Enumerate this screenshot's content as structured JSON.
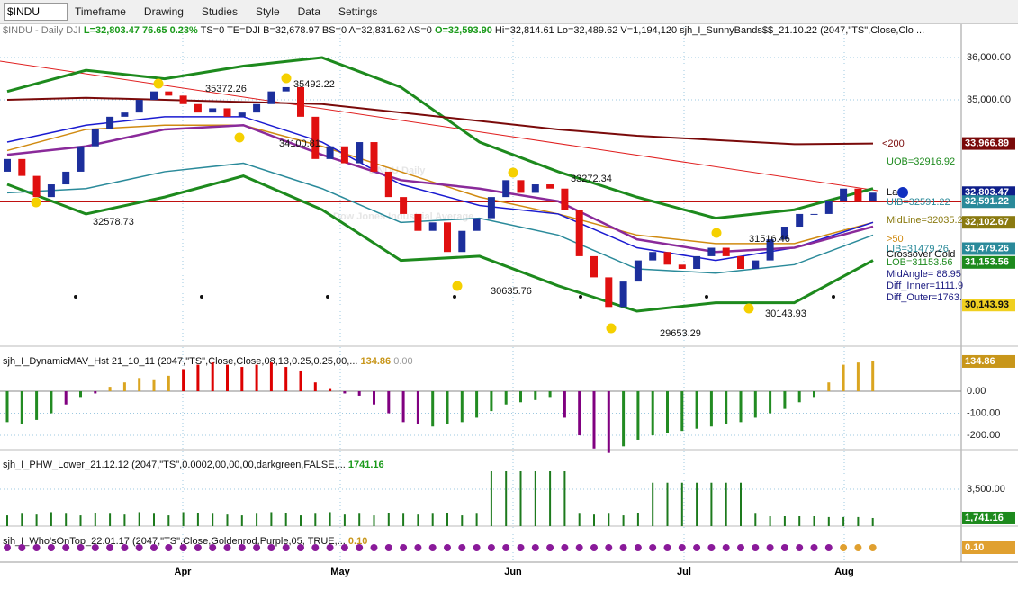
{
  "toolbar": {
    "symbol": "$INDU",
    "buttons": [
      "Timeframe",
      "Drawing",
      "Studies",
      "Style",
      "Data",
      "Settings"
    ]
  },
  "x_axis": {
    "labels": [
      "Apr",
      "May",
      "Jun",
      "Jul",
      "Aug"
    ]
  },
  "chart_data": [
    {
      "type": "candlestick",
      "header": [
        {
          "text": "$INDU - Daily  DJI",
          "color": "#777777"
        },
        {
          "text": " L=32,803.47  76.65  0.23%",
          "color": "#1a9a1a"
        },
        {
          "text": "  TS=0  TE=DJI  B=32,678.97  BS=0  A=32,831.62  AS=0 ",
          "color": "#111111"
        },
        {
          "text": " O=32,593.90",
          "color": "#1a9a1a"
        },
        {
          "text": "  Hi=32,814.61  Lo=32,489.62  V=1,194,120   sjh_I_SunnyBands$$_21.10.22 (2047,\"TS\",Close,Clo ...",
          "color": "#111111"
        }
      ],
      "watermark": [
        "$INDU Daily",
        "Dow Jones Industrial Average"
      ],
      "up_color": "#1c2f9c",
      "down_color": "#e01010",
      "open": [
        33300,
        33600,
        33200,
        32700,
        33000,
        33300,
        33900,
        34300,
        34600,
        34700,
        35000,
        35200,
        35100,
        34900,
        34700,
        34800,
        34600,
        34700,
        34900,
        35200,
        35300,
        34600,
        33600,
        33900,
        33500,
        34000,
        33300,
        32700,
        32300,
        31900,
        32100,
        31400,
        31900,
        32200,
        32700,
        33100,
        32800,
        33000,
        32900,
        32400,
        31300,
        30800,
        30100,
        30700,
        31200,
        31400,
        31100,
        31000,
        31300,
        31500,
        31300,
        31000,
        31200,
        31700,
        32000,
        32300,
        32300,
        32600,
        32900,
        32600
      ],
      "close": [
        33600,
        33200,
        32700,
        33000,
        33300,
        33900,
        34300,
        34600,
        34700,
        35000,
        35200,
        35100,
        34900,
        34700,
        34800,
        34600,
        34700,
        34900,
        35200,
        35300,
        34600,
        33600,
        33900,
        33500,
        34000,
        33300,
        32700,
        32300,
        31900,
        32100,
        31400,
        31900,
        32200,
        32700,
        33100,
        32800,
        33000,
        32900,
        32400,
        31300,
        30800,
        30100,
        30700,
        31200,
        31400,
        31100,
        31000,
        31300,
        31500,
        31300,
        31000,
        31200,
        31700,
        32000,
        32300,
        32300,
        32600,
        32900,
        32600,
        32803.47
      ],
      "lines": [
        {
          "color": "#1d8a1d",
          "width": 3,
          "values": [
            35200,
            35700,
            35500,
            35800,
            36000,
            35300,
            34000,
            33300,
            32700,
            32200,
            32400,
            32900
          ]
        },
        {
          "color": "#1d8a1d",
          "width": 3,
          "values": [
            33000,
            32300,
            32700,
            33200,
            32400,
            31200,
            31300,
            30600,
            30000,
            30200,
            30200,
            31200
          ]
        },
        {
          "color": "#7a0a0a",
          "width": 2,
          "values": [
            35000,
            35050,
            35000,
            34950,
            34900,
            34700,
            34500,
            34300,
            34150,
            34050,
            33950,
            33966.89
          ]
        },
        {
          "color": "#d08a10",
          "width": 1.5,
          "values": [
            33800,
            34300,
            34400,
            34400,
            33900,
            33300,
            32700,
            32300,
            31800,
            31600,
            31600,
            32100
          ]
        },
        {
          "color": "#1a1ad0",
          "width": 1.5,
          "values": [
            34000,
            34400,
            34600,
            34600,
            34000,
            33000,
            32500,
            32300,
            31500,
            31200,
            31500,
            32100
          ]
        },
        {
          "color": "#8a2a9a",
          "width": 2.5,
          "values": [
            33700,
            33900,
            34300,
            34400,
            33700,
            33100,
            32900,
            32600,
            31700,
            31400,
            31500,
            32000
          ]
        },
        {
          "color": "#2a8a9a",
          "width": 1.5,
          "values": [
            32800,
            32900,
            33300,
            33500,
            32900,
            32100,
            32200,
            31800,
            31000,
            30900,
            31100,
            31800
          ]
        }
      ],
      "annotations": [
        "35372.26",
        "35492.22",
        "34100.81",
        "32578.73",
        "33272.34",
        "30635.76",
        "29653.29",
        "30143.93",
        "31516.46",
        "<200"
      ],
      "right_labels": [
        "UOB=32916.92",
        "Last",
        "UIB=32591.22",
        "MidLine=32035.2",
        ">50",
        "LIB=31479.26",
        "Crossover Gold",
        "LOB=31153.56",
        "MidAngle= 88.95",
        "Diff_Inner=1111.9",
        "Diff_Outer=1763."
      ],
      "ylim": [
        29170,
        36810
      ],
      "yticks": [
        {
          "value": 36000,
          "label": "36,000.00"
        },
        {
          "value": 35000,
          "label": "35,000.00"
        }
      ],
      "price_markers": [
        {
          "value": 33966.89,
          "label": "33,966.89",
          "color": "#7a0a0a"
        },
        {
          "value": 32803.47,
          "label": "32,803.47",
          "color": "#0e1f8a"
        },
        {
          "value": 32591.22,
          "label": "32,591.22",
          "color": "#2a8a9a"
        },
        {
          "value": 32102.67,
          "label": "32,102.67",
          "color": "#8a7a10"
        },
        {
          "value": 31479.26,
          "label": "31,479.26",
          "color": "#2a8a9a"
        },
        {
          "value": 31153.56,
          "label": "31,153.56",
          "color": "#1d8a1d"
        },
        {
          "value": 30143.93,
          "label": "30,143.93",
          "color": "#f0d020"
        }
      ]
    },
    {
      "type": "histogram",
      "header": [
        {
          "text": "sjh_I_DynamicMAV_Hst 21_10_11 (2047,\"TS\",Close,Close,08,13,0.25,0.25,00,...",
          "color": "#111111"
        },
        {
          "text": "  134.86",
          "color": "#c8961a"
        },
        {
          "text": "  0.00",
          "color": "#999999"
        }
      ],
      "values": [
        -140,
        -150,
        -130,
        -100,
        -60,
        -30,
        -10,
        20,
        40,
        60,
        50,
        70,
        100,
        120,
        130,
        120,
        110,
        120,
        130,
        110,
        90,
        40,
        10,
        -10,
        -20,
        -60,
        -100,
        -140,
        -150,
        -160,
        -150,
        -140,
        -120,
        -90,
        -60,
        -50,
        -40,
        -30,
        -120,
        -200,
        -260,
        -280,
        -250,
        -220,
        -200,
        -190,
        -180,
        -170,
        -160,
        -150,
        -140,
        -120,
        -100,
        -80,
        -50,
        -30,
        40,
        120,
        130,
        134.86
      ],
      "colors": [
        "#228b22",
        "#228b22",
        "#228b22",
        "#228b22",
        "#800080",
        "#228b22",
        "#800080",
        "#daa520",
        "#daa520",
        "#daa520",
        "#daa520",
        "#daa520",
        "#dd0000",
        "#dd0000",
        "#dd0000",
        "#dd0000",
        "#dd0000",
        "#dd0000",
        "#dd0000",
        "#dd0000",
        "#dd0000",
        "#dd0000",
        "#dd0000",
        "#800080",
        "#800080",
        "#800080",
        "#800080",
        "#800080",
        "#800080",
        "#228b22",
        "#228b22",
        "#228b22",
        "#228b22",
        "#228b22",
        "#228b22",
        "#228b22",
        "#228b22",
        "#228b22",
        "#800080",
        "#800080",
        "#800080",
        "#800080",
        "#228b22",
        "#228b22",
        "#228b22",
        "#228b22",
        "#228b22",
        "#228b22",
        "#228b22",
        "#228b22",
        "#228b22",
        "#228b22",
        "#228b22",
        "#228b22",
        "#228b22",
        "#228b22",
        "#daa520",
        "#daa520",
        "#daa520",
        "#daa520"
      ],
      "ylim": [
        -265,
        204
      ],
      "yticks": [
        {
          "value": 0,
          "label": "0.00"
        },
        {
          "value": -100,
          "label": "-100.00"
        },
        {
          "value": -200,
          "label": "-200.00"
        }
      ],
      "price_markers": [
        {
          "value": 134.86,
          "label": "134.86",
          "color": "#c8961a"
        }
      ]
    },
    {
      "type": "spikes",
      "header": [
        {
          "text": "sjh_I_PHW_Lower_21.12.12 (2047,\"TS\",0.0002,00,00,00,darkgreen,FALSE,...",
          "color": "#111111"
        },
        {
          "text": "  1741.16",
          "color": "#1a9a1a"
        }
      ],
      "color": "#1d7a1d",
      "values": [
        1900,
        2000,
        1950,
        2100,
        2000,
        1900,
        2050,
        2000,
        1950,
        2100,
        2000,
        1900,
        2100,
        2050,
        2000,
        1950,
        1900,
        2000,
        2100,
        2050,
        1900,
        2000,
        2100,
        1950,
        2000,
        1900,
        2050,
        2000,
        1950,
        2000,
        2050,
        1900,
        2000,
        4600,
        4600,
        4600,
        4600,
        4600,
        4600,
        2000,
        1950,
        2000,
        1900,
        2050,
        3900,
        3900,
        3900,
        3900,
        3900,
        3900,
        3900,
        2000,
        1850,
        1850,
        1850,
        1850,
        1800,
        1800,
        1800,
        1741.16
      ],
      "ylim": [
        1245,
        5920
      ],
      "yticks": [
        {
          "value": 3500,
          "label": "3,500.00"
        }
      ],
      "price_markers": [
        {
          "value": 1741.16,
          "label": "1,741.16",
          "color": "#1d8a1d"
        }
      ]
    },
    {
      "type": "dots",
      "header": [
        {
          "text": "sjh_I_Who'sOnTop_22.01.17 (2047,\"TS\",Close,Goldenrod,Purple,05, TRUE,...",
          "color": "#111111"
        },
        {
          "text": "  0.10",
          "color": "#c8961a"
        }
      ],
      "purple_color": "#8a1a9a",
      "gold_color": "#e0a030",
      "gold_from": 57,
      "count": 60,
      "price_markers": [
        {
          "value": 0.1,
          "label": "0.10",
          "color": "#e0a030"
        }
      ]
    }
  ]
}
